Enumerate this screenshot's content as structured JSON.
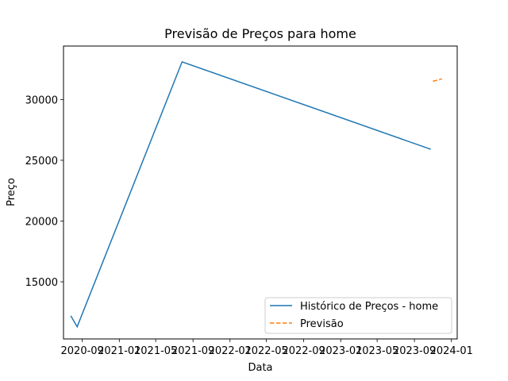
{
  "chart_data": {
    "type": "line",
    "title": "Previsão de Preços para home",
    "xlabel": "Data",
    "ylabel": "Preço",
    "x_ticks": [
      "2020-09",
      "2021-01",
      "2021-05",
      "2021-09",
      "2022-01",
      "2022-05",
      "2022-09",
      "2023-01",
      "2023-05",
      "2023-09",
      "2024-01"
    ],
    "y_ticks": [
      15000,
      20000,
      25000,
      30000
    ],
    "series": [
      {
        "name": "Histórico de Preços - home",
        "color": "#1f77b4",
        "style": "solid",
        "x": [
          "2020-07-25",
          "2020-08-15",
          "2021-07-27",
          "2023-10-25"
        ],
        "y": [
          12200,
          11300,
          33100,
          25900
        ]
      },
      {
        "name": "Previsão",
        "color": "#ff7f0e",
        "style": "dashed",
        "x": [
          "2023-11-01",
          "2023-12-01"
        ],
        "y": [
          31500,
          31700
        ]
      }
    ],
    "xlim": [
      "2020-07-01",
      "2024-01-20"
    ],
    "ylim": [
      10300,
      34400
    ],
    "grid": false,
    "legend_position": "lower right"
  }
}
